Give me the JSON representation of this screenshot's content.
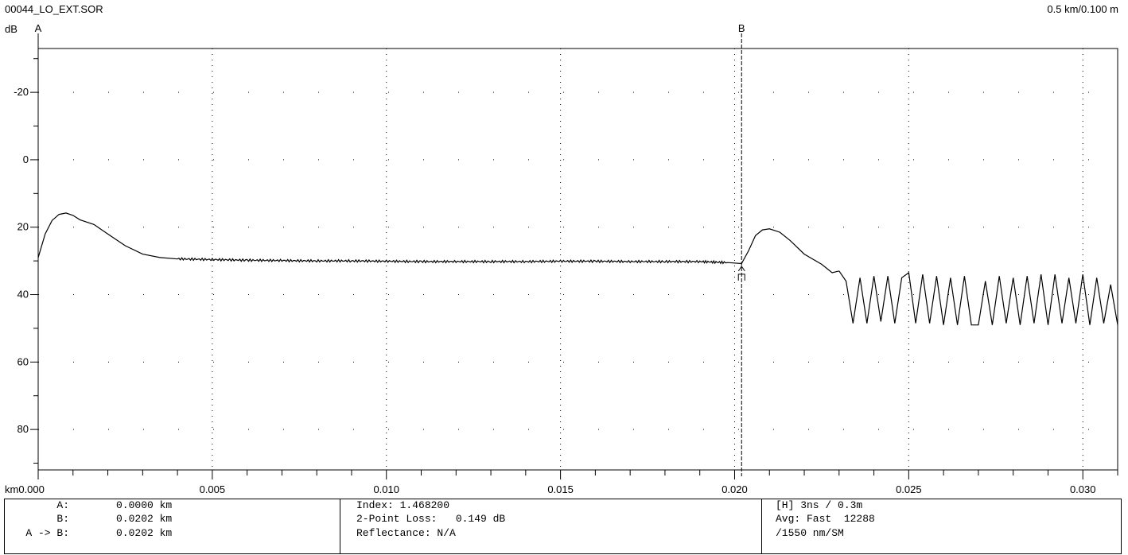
{
  "header": {
    "filename": "00044_LO_EXT.SOR",
    "scale": "0.5 km/0.100 m"
  },
  "chart_data": {
    "type": "line",
    "ylabel": "dB",
    "xlabel": "km",
    "xlim": [
      0.0,
      0.031
    ],
    "ylim": [
      92,
      -33
    ],
    "y_ticks": [
      "-20",
      "0",
      "20",
      "40",
      "60",
      "80"
    ],
    "y_tick_values": [
      -20,
      0,
      20,
      40,
      60,
      80
    ],
    "x_ticks": [
      "0.000",
      "0.005",
      "0.010",
      "0.015",
      "0.020",
      "0.025",
      "0.030"
    ],
    "x_tick_values": [
      0.0,
      0.005,
      0.01,
      0.015,
      0.02,
      0.025,
      0.03
    ],
    "grid": true,
    "markers": [
      {
        "name": "A",
        "x": 0.0
      },
      {
        "name": "B",
        "x": 0.0202
      }
    ],
    "event_marker_x": 0.0202,
    "series": [
      {
        "x": [
          0.0,
          0.0002,
          0.0004,
          0.0006,
          0.0008,
          0.001,
          0.0012,
          0.0016,
          0.002,
          0.0025,
          0.003,
          0.0035,
          0.004,
          0.005,
          0.006,
          0.007,
          0.008,
          0.009,
          0.01,
          0.011,
          0.012,
          0.013,
          0.014,
          0.015,
          0.016,
          0.017,
          0.018,
          0.019,
          0.0198,
          0.0202,
          0.0204,
          0.0206,
          0.0208,
          0.021,
          0.0213,
          0.0216,
          0.022,
          0.0225,
          0.0228,
          0.023
        ],
        "y": [
          29,
          22,
          18,
          16.2,
          15.8,
          16.5,
          17.8,
          19.2,
          22,
          25.5,
          28,
          29,
          29.4,
          29.6,
          29.8,
          29.9,
          30,
          30,
          30.1,
          30.2,
          30.2,
          30.2,
          30.2,
          30.1,
          30.1,
          30.2,
          30.2,
          30.2,
          30.5,
          30.8,
          27,
          22.5,
          20.8,
          20.5,
          21.5,
          24,
          28,
          31,
          33.5,
          33
        ]
      },
      {
        "x": [
          0.023,
          0.0232,
          0.0234,
          0.0236,
          0.0238,
          0.024,
          0.0242,
          0.0244,
          0.0246,
          0.0248,
          0.025,
          0.0252,
          0.0254,
          0.0256,
          0.0258,
          0.026,
          0.0262,
          0.0264,
          0.0266,
          0.0268,
          0.027,
          0.0272,
          0.0274,
          0.0276,
          0.0278,
          0.028,
          0.0282,
          0.0284,
          0.0286,
          0.0288,
          0.029,
          0.0292,
          0.0294,
          0.0296,
          0.0298,
          0.03,
          0.0302,
          0.0304,
          0.0306,
          0.0308,
          0.031
        ],
        "y": [
          33,
          36,
          48.5,
          35,
          48.5,
          34.5,
          48,
          34.5,
          48.5,
          35,
          33.5,
          48.5,
          34,
          48.5,
          34.5,
          49,
          35,
          49,
          34.5,
          49,
          49,
          36,
          49,
          34.5,
          48.5,
          35,
          49,
          34.5,
          48.5,
          34,
          49,
          34,
          48.5,
          35,
          48.5,
          34,
          49,
          35,
          48.5,
          37,
          49
        ]
      }
    ]
  },
  "info": {
    "left": [
      {
        "label": "A:",
        "value": "0.0000 km"
      },
      {
        "label": "B:",
        "value": "0.0202 km"
      },
      {
        "label": "A -> B:",
        "value": "0.0202 km"
      }
    ],
    "middle": [
      "Index: 1.468200",
      "2-Point Loss:   0.149 dB",
      "Reflectance: N/A"
    ],
    "right": [
      "[H] 3ns / 0.3m",
      "Avg: Fast  12288",
      "/1550 nm/SM"
    ]
  }
}
